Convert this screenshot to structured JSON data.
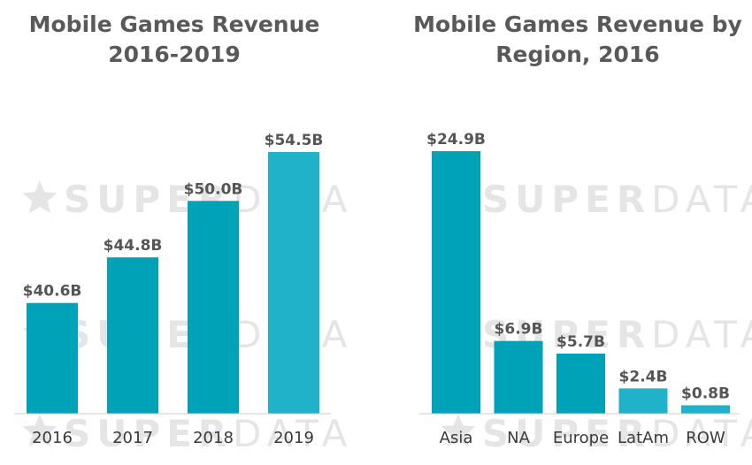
{
  "watermark": {
    "brand_bold": "SUPER",
    "brand_light": "DATA",
    "color": "#e5e5e5",
    "icon": "star-icon"
  },
  "chart_data": [
    {
      "type": "bar",
      "title_lines": [
        "Mobile Games Revenue",
        "2016-2019"
      ],
      "categories": [
        "2016",
        "2017",
        "2018",
        "2019"
      ],
      "values": [
        40.6,
        44.8,
        50.0,
        54.5
      ],
      "value_labels": [
        "$40.6B",
        "$44.8B",
        "$50.0B",
        "$54.5B"
      ],
      "colors": [
        "#00a2b8",
        "#00a2b8",
        "#00a2b8",
        "#1fb2c8"
      ],
      "unit": "$B",
      "ylim": [
        30.4,
        54.5
      ],
      "grid": false,
      "legend": "none"
    },
    {
      "type": "bar",
      "title_lines": [
        "Mobile Games Revenue by",
        "Region, 2016"
      ],
      "categories": [
        "Asia",
        "NA",
        "Europe",
        "LatAm",
        "ROW"
      ],
      "values": [
        24.9,
        6.9,
        5.7,
        2.4,
        0.8
      ],
      "value_labels": [
        "$24.9B",
        "$6.9B",
        "$5.7B",
        "$2.4B",
        "$0.8B"
      ],
      "colors": [
        "#00a2b8",
        "#00a2b8",
        "#00a2b8",
        "#1fb2c8",
        "#1fb2c8"
      ],
      "unit": "$B",
      "ylim": [
        0,
        24.9
      ],
      "grid": false,
      "legend": "none"
    }
  ]
}
